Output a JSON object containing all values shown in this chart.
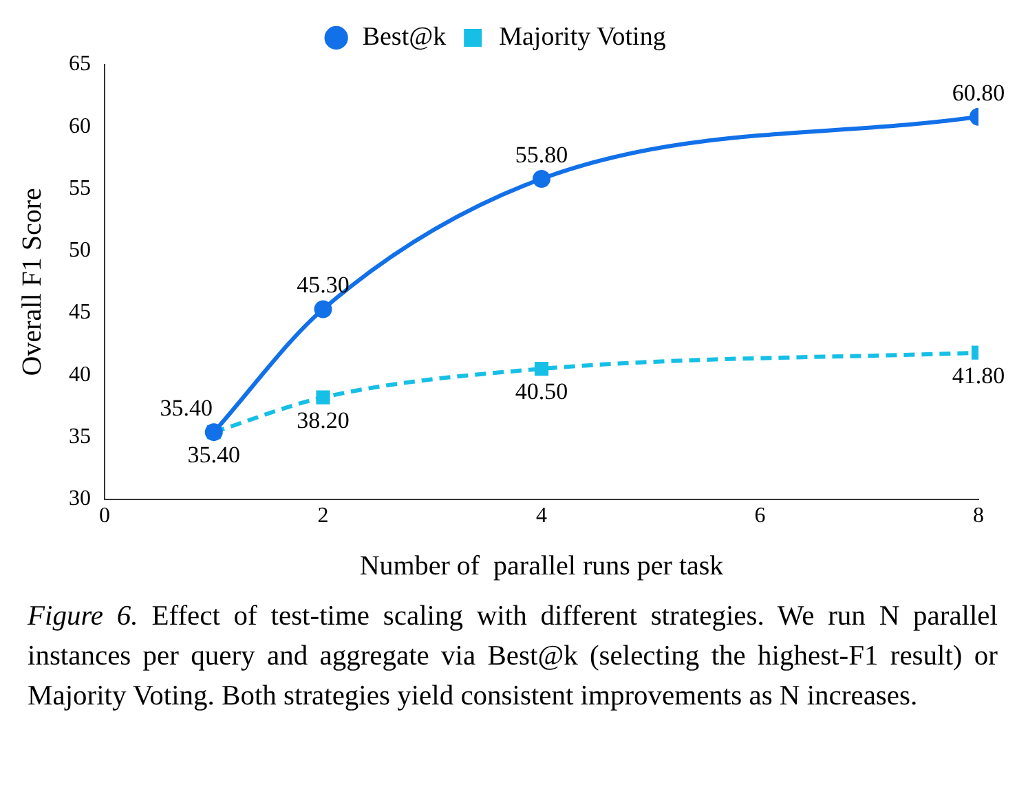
{
  "chart_data": {
    "type": "line",
    "xlabel": "Number of  parallel runs per task",
    "ylabel": "Overall F1 Score",
    "x": [
      1,
      2,
      4,
      8
    ],
    "series": [
      {
        "name": "Best@k",
        "color": "#1270e8",
        "values": [
          35.4,
          45.3,
          55.8,
          60.8
        ],
        "value_labels": [
          "35.40",
          "45.30",
          "55.80",
          "60.80"
        ],
        "marker": "circle",
        "line_style": "solid"
      },
      {
        "name": "Majority Voting",
        "color": "#16bfe6",
        "values": [
          35.4,
          38.2,
          40.5,
          41.8
        ],
        "value_labels": [
          "35.40",
          "38.20",
          "40.50",
          "41.80"
        ],
        "marker": "square",
        "line_style": "dashed"
      }
    ],
    "xlim": [
      0,
      8
    ],
    "xticks": [
      0,
      2,
      4,
      6,
      8
    ],
    "ylim": [
      30,
      65
    ],
    "yticks": [
      30,
      35,
      40,
      45,
      50,
      55,
      60,
      65
    ],
    "grid": false,
    "legend": "top",
    "annotations": [
      "Figure 6. Effect of test-time scaling with different strategies. We run N parallel instances per query and aggregate via Best@k (selecting the highest-F1 result) or Majority Voting. Both strategies yield consistent improvements as N increases."
    ]
  }
}
